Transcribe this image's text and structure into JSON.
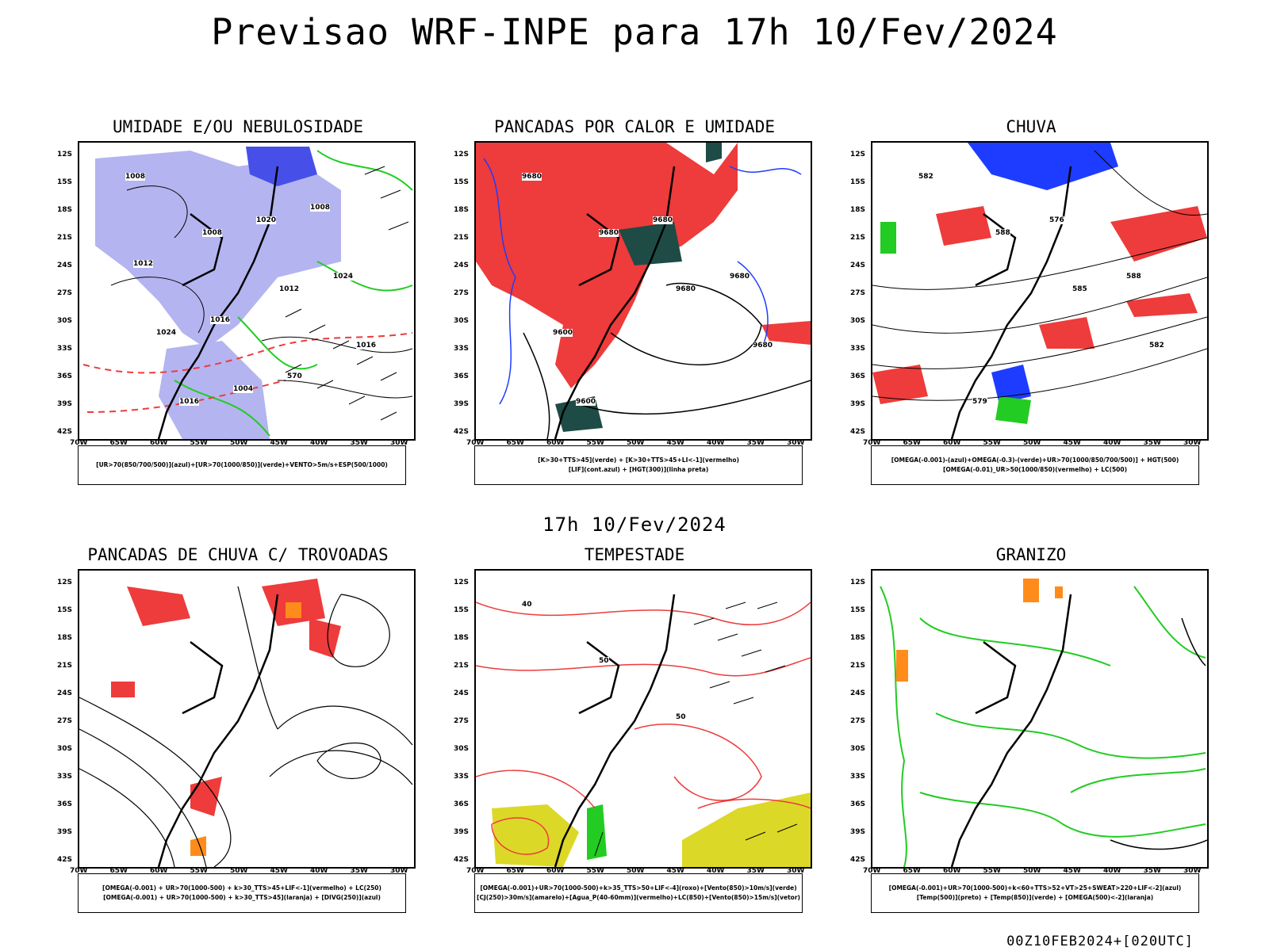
{
  "title": "Previsao WRF-INPE  para 17h 10/Fev/2024",
  "mid_title": "17h 10/Fev/2024",
  "footer_stamp": "00Z10FEB2024+[020UTC]",
  "axes": {
    "lat": [
      "12S",
      "15S",
      "18S",
      "21S",
      "24S",
      "27S",
      "30S",
      "33S",
      "36S",
      "39S",
      "42S"
    ],
    "lon": [
      "70W",
      "65W",
      "60W",
      "55W",
      "50W",
      "45W",
      "40W",
      "35W",
      "30W"
    ]
  },
  "panels": [
    {
      "title": "UMIDADE E/OU NEBULOSIDADE",
      "legend": [
        "[UR>70(850/700/500)](azul)+[UR>70(1000/850)](verde)+VENTO>5m/s+ESP(500/1000)"
      ],
      "contour_labels": [
        "1008",
        "1008",
        "1012",
        "1016",
        "1016",
        "1020",
        "1024",
        "1024",
        "1004",
        "1008",
        "1012",
        "1016",
        "570"
      ]
    },
    {
      "title": "PANCADAS POR CALOR E UMIDADE",
      "legend": [
        "[K>30+TTS>45](verde) + [K>30+TTS>45+LI<-1](vermelho)",
        "[LIF](cont.azul) + [HGT(300)](linha preta)"
      ],
      "contour_labels": [
        "9680",
        "9680",
        "9680",
        "9680",
        "9600",
        "9680",
        "9680",
        "9600"
      ]
    },
    {
      "title": "CHUVA",
      "legend": [
        "[OMEGA(-0.001)-(azul)+OMEGA(-0.3)-(verde)+UR>70(1000/850/700/500)] + HGT(500)",
        "[OMEGA(-0.01)_UR>50(1000/850)(vermelho) + LC(500)"
      ],
      "contour_labels": [
        "582",
        "588",
        "585",
        "582",
        "579",
        "576",
        "588"
      ]
    },
    {
      "title": "PANCADAS DE CHUVA C/ TROVOADAS",
      "legend": [
        "[OMEGA(-0.001) + UR>70(1000-500) + k>30_TTS>45+LIF<-1](vermelho) + LC(250)",
        "[OMEGA(-0.001) + UR>70(1000-500) + k>30_TTS>45](laranja) + [DIVG(250)](azul)"
      ],
      "contour_labels": []
    },
    {
      "title": "TEMPESTADE",
      "legend": [
        "[OMEGA(-0.001)+UR>70(1000-500)+k>35_TTS>50+LIF<-4](roxo)+[Vento(850)>10m/s](verde)",
        "[CJ(250)>30m/s](amarelo)+[Agua_P(40-60mm)](vermelho)+LC(850)+[Vento(850)>15m/s](vetor)"
      ],
      "contour_labels": [
        "40",
        "50",
        "50"
      ]
    },
    {
      "title": "GRANIZO",
      "legend": [
        "[OMEGA(-0.001)+UR>70(1000-500)+k<60+TTS>52+VT>25+SWEAT>220+LIF<-2](azul)",
        "[Temp(500)](preto) + [Temp(850)](verde) + [OMEGA(500)<-2](laranja)"
      ],
      "contour_labels": []
    }
  ],
  "colors": {
    "red": "#ee3b3b",
    "green": "#22cc22",
    "blue": "#1e3cff",
    "lavender": "#b4b4f0",
    "darkteal": "#1e4b46",
    "yellow": "#dcd828",
    "orange": "#ff8c1a"
  }
}
